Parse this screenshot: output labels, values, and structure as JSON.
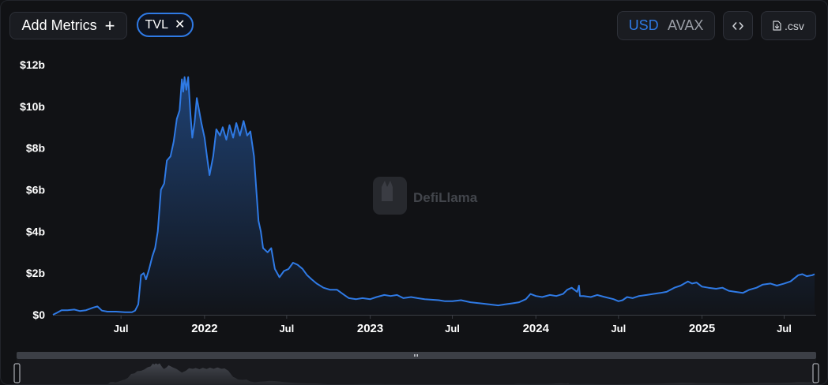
{
  "toolbar": {
    "add_metrics_label": "Add Metrics",
    "add_icon": "plus-icon",
    "metric_chip": "TVL",
    "remove_icon": "close-icon",
    "currency_options": [
      "USD",
      "AVAX"
    ],
    "currency_selected": "USD",
    "embed_icon": "code-icon",
    "csv_label": ".csv",
    "csv_icon": "file-download-icon"
  },
  "watermark": "DefiLlama",
  "colors": {
    "line": "#2f7ae5",
    "background": "#111215",
    "accent": "#2f7ae5"
  },
  "chart_data": {
    "type": "area",
    "title": "",
    "xlabel": "",
    "ylabel": "",
    "ylim": [
      0,
      12
    ],
    "y_ticks": [
      0,
      2,
      4,
      6,
      8,
      10,
      12
    ],
    "y_tick_labels": [
      "$0",
      "$2b",
      "$4b",
      "$6b",
      "$8b",
      "$10b",
      "$12b"
    ],
    "x_range": [
      "2021-02-01",
      "2025-09-06"
    ],
    "x_ticks": [
      {
        "date": "2021-07-01",
        "label": "Jul",
        "bold": false
      },
      {
        "date": "2022-01-01",
        "label": "2022",
        "bold": true
      },
      {
        "date": "2022-07-01",
        "label": "Jul",
        "bold": false
      },
      {
        "date": "2023-01-01",
        "label": "2023",
        "bold": true
      },
      {
        "date": "2023-07-01",
        "label": "Jul",
        "bold": false
      },
      {
        "date": "2024-01-01",
        "label": "2024",
        "bold": true
      },
      {
        "date": "2024-07-01",
        "label": "Jul",
        "bold": false
      },
      {
        "date": "2025-01-01",
        "label": "2025",
        "bold": true
      },
      {
        "date": "2025-07-01",
        "label": "Jul",
        "bold": false
      }
    ],
    "series": [
      {
        "units": "USD billions",
        "points": [
          [
            "2021-02-01",
            0.0
          ],
          [
            "2021-02-10",
            0.1
          ],
          [
            "2021-02-20",
            0.22
          ],
          [
            "2021-03-05",
            0.22
          ],
          [
            "2021-03-20",
            0.25
          ],
          [
            "2021-04-01",
            0.18
          ],
          [
            "2021-04-15",
            0.22
          ],
          [
            "2021-05-01",
            0.35
          ],
          [
            "2021-05-10",
            0.4
          ],
          [
            "2021-05-20",
            0.2
          ],
          [
            "2021-06-01",
            0.15
          ],
          [
            "2021-06-20",
            0.15
          ],
          [
            "2021-07-10",
            0.12
          ],
          [
            "2021-07-25",
            0.12
          ],
          [
            "2021-08-01",
            0.2
          ],
          [
            "2021-08-08",
            0.5
          ],
          [
            "2021-08-14",
            1.9
          ],
          [
            "2021-08-20",
            2.0
          ],
          [
            "2021-08-25",
            1.7
          ],
          [
            "2021-09-01",
            2.2
          ],
          [
            "2021-09-08",
            2.8
          ],
          [
            "2021-09-14",
            3.2
          ],
          [
            "2021-09-20",
            4.0
          ],
          [
            "2021-09-27",
            6.0
          ],
          [
            "2021-10-04",
            6.3
          ],
          [
            "2021-10-10",
            7.4
          ],
          [
            "2021-10-18",
            7.6
          ],
          [
            "2021-10-25",
            8.3
          ],
          [
            "2021-11-01",
            9.4
          ],
          [
            "2021-11-07",
            9.8
          ],
          [
            "2021-11-12",
            11.3
          ],
          [
            "2021-11-15",
            10.7
          ],
          [
            "2021-11-18",
            11.4
          ],
          [
            "2021-11-22",
            10.8
          ],
          [
            "2021-11-26",
            11.4
          ],
          [
            "2021-12-01",
            9.6
          ],
          [
            "2021-12-05",
            8.5
          ],
          [
            "2021-12-10",
            9.2
          ],
          [
            "2021-12-15",
            10.4
          ],
          [
            "2021-12-20",
            9.8
          ],
          [
            "2021-12-25",
            9.2
          ],
          [
            "2022-01-01",
            8.5
          ],
          [
            "2022-01-07",
            7.5
          ],
          [
            "2022-01-12",
            6.7
          ],
          [
            "2022-01-20",
            7.6
          ],
          [
            "2022-01-27",
            8.9
          ],
          [
            "2022-02-04",
            8.6
          ],
          [
            "2022-02-10",
            9.0
          ],
          [
            "2022-02-18",
            8.4
          ],
          [
            "2022-02-25",
            9.1
          ],
          [
            "2022-03-05",
            8.5
          ],
          [
            "2022-03-12",
            9.2
          ],
          [
            "2022-03-20",
            8.6
          ],
          [
            "2022-03-28",
            9.3
          ],
          [
            "2022-04-05",
            8.6
          ],
          [
            "2022-04-12",
            8.8
          ],
          [
            "2022-04-20",
            7.6
          ],
          [
            "2022-04-25",
            6.0
          ],
          [
            "2022-04-30",
            4.5
          ],
          [
            "2022-05-05",
            4.0
          ],
          [
            "2022-05-10",
            3.2
          ],
          [
            "2022-05-20",
            3.0
          ],
          [
            "2022-05-28",
            3.2
          ],
          [
            "2022-06-05",
            2.2
          ],
          [
            "2022-06-15",
            1.8
          ],
          [
            "2022-06-25",
            2.1
          ],
          [
            "2022-07-05",
            2.2
          ],
          [
            "2022-07-15",
            2.5
          ],
          [
            "2022-07-25",
            2.4
          ],
          [
            "2022-08-05",
            2.2
          ],
          [
            "2022-08-15",
            1.9
          ],
          [
            "2022-08-25",
            1.7
          ],
          [
            "2022-09-05",
            1.5
          ],
          [
            "2022-09-20",
            1.3
          ],
          [
            "2022-10-05",
            1.2
          ],
          [
            "2022-10-20",
            1.2
          ],
          [
            "2022-11-05",
            0.95
          ],
          [
            "2022-11-15",
            0.8
          ],
          [
            "2022-12-01",
            0.75
          ],
          [
            "2022-12-15",
            0.8
          ],
          [
            "2023-01-01",
            0.75
          ],
          [
            "2023-01-15",
            0.85
          ],
          [
            "2023-02-01",
            0.95
          ],
          [
            "2023-02-15",
            0.9
          ],
          [
            "2023-03-01",
            0.95
          ],
          [
            "2023-03-15",
            0.8
          ],
          [
            "2023-04-01",
            0.85
          ],
          [
            "2023-04-15",
            0.8
          ],
          [
            "2023-05-01",
            0.75
          ],
          [
            "2023-06-01",
            0.7
          ],
          [
            "2023-06-15",
            0.65
          ],
          [
            "2023-07-01",
            0.65
          ],
          [
            "2023-07-20",
            0.7
          ],
          [
            "2023-08-10",
            0.6
          ],
          [
            "2023-09-01",
            0.55
          ],
          [
            "2023-09-20",
            0.5
          ],
          [
            "2023-10-10",
            0.45
          ],
          [
            "2023-10-25",
            0.5
          ],
          [
            "2023-11-10",
            0.55
          ],
          [
            "2023-11-25",
            0.6
          ],
          [
            "2023-12-10",
            0.75
          ],
          [
            "2023-12-20",
            1.0
          ],
          [
            "2024-01-01",
            0.9
          ],
          [
            "2024-01-15",
            0.85
          ],
          [
            "2024-02-01",
            0.95
          ],
          [
            "2024-02-15",
            0.9
          ],
          [
            "2024-03-01",
            1.0
          ],
          [
            "2024-03-10",
            1.2
          ],
          [
            "2024-03-20",
            1.3
          ],
          [
            "2024-04-01",
            1.1
          ],
          [
            "2024-04-05",
            1.4
          ],
          [
            "2024-04-07",
            0.9
          ],
          [
            "2024-04-15",
            0.9
          ],
          [
            "2024-05-01",
            0.85
          ],
          [
            "2024-05-15",
            0.95
          ],
          [
            "2024-06-01",
            0.85
          ],
          [
            "2024-06-20",
            0.75
          ],
          [
            "2024-07-01",
            0.65
          ],
          [
            "2024-07-10",
            0.7
          ],
          [
            "2024-07-20",
            0.85
          ],
          [
            "2024-08-01",
            0.8
          ],
          [
            "2024-08-15",
            0.9
          ],
          [
            "2024-09-01",
            0.95
          ],
          [
            "2024-09-15",
            1.0
          ],
          [
            "2024-10-01",
            1.05
          ],
          [
            "2024-10-15",
            1.1
          ],
          [
            "2024-11-01",
            1.3
          ],
          [
            "2024-11-15",
            1.4
          ],
          [
            "2024-12-01",
            1.6
          ],
          [
            "2024-12-10",
            1.5
          ],
          [
            "2024-12-20",
            1.55
          ],
          [
            "2025-01-01",
            1.35
          ],
          [
            "2025-01-15",
            1.3
          ],
          [
            "2025-02-01",
            1.25
          ],
          [
            "2025-02-15",
            1.3
          ],
          [
            "2025-03-01",
            1.15
          ],
          [
            "2025-03-15",
            1.1
          ],
          [
            "2025-04-01",
            1.05
          ],
          [
            "2025-04-15",
            1.2
          ],
          [
            "2025-05-01",
            1.3
          ],
          [
            "2025-05-15",
            1.45
          ],
          [
            "2025-06-01",
            1.5
          ],
          [
            "2025-06-15",
            1.4
          ],
          [
            "2025-07-01",
            1.5
          ],
          [
            "2025-07-15",
            1.6
          ],
          [
            "2025-08-01",
            1.9
          ],
          [
            "2025-08-10",
            1.95
          ],
          [
            "2025-08-20",
            1.85
          ],
          [
            "2025-09-01",
            1.9
          ],
          [
            "2025-09-06",
            1.95
          ]
        ]
      }
    ],
    "grid": false,
    "legend": "none",
    "range_selector": true
  }
}
